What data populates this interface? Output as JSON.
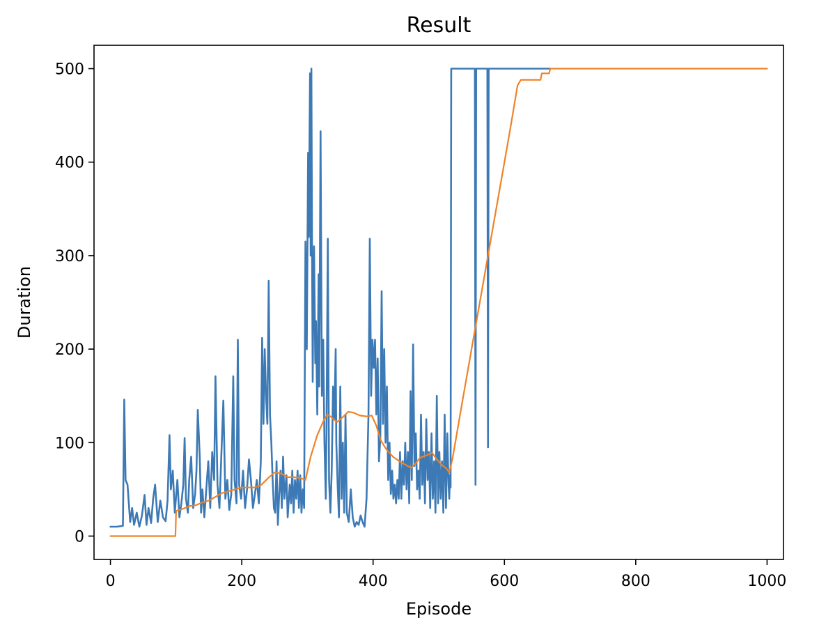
{
  "chart_data": {
    "type": "line",
    "title": "Result",
    "xlabel": "Episode",
    "ylabel": "Duration",
    "xlim": [
      -25,
      1025
    ],
    "ylim": [
      -25,
      525
    ],
    "xticks": [
      0,
      200,
      400,
      600,
      800,
      1000
    ],
    "yticks": [
      0,
      100,
      200,
      300,
      400,
      500
    ],
    "grid": false,
    "series": [
      {
        "color": "#3d7ab5",
        "values": [
          [
            0,
            10
          ],
          [
            10,
            10
          ],
          [
            19,
            11
          ],
          [
            21,
            146
          ],
          [
            23,
            60
          ],
          [
            26,
            55
          ],
          [
            30,
            15
          ],
          [
            33,
            30
          ],
          [
            36,
            12
          ],
          [
            40,
            25
          ],
          [
            44,
            10
          ],
          [
            48,
            22
          ],
          [
            52,
            44
          ],
          [
            55,
            12
          ],
          [
            58,
            30
          ],
          [
            62,
            14
          ],
          [
            65,
            40
          ],
          [
            68,
            55
          ],
          [
            72,
            15
          ],
          [
            76,
            38
          ],
          [
            80,
            20
          ],
          [
            84,
            16
          ],
          [
            87,
            38
          ],
          [
            90,
            108
          ],
          [
            92,
            50
          ],
          [
            95,
            70
          ],
          [
            98,
            25
          ],
          [
            102,
            60
          ],
          [
            105,
            20
          ],
          [
            108,
            35
          ],
          [
            111,
            55
          ],
          [
            113,
            105
          ],
          [
            115,
            40
          ],
          [
            118,
            25
          ],
          [
            120,
            60
          ],
          [
            123,
            85
          ],
          [
            126,
            30
          ],
          [
            129,
            45
          ],
          [
            131,
            70
          ],
          [
            133,
            135
          ],
          [
            136,
            85
          ],
          [
            138,
            25
          ],
          [
            140,
            50
          ],
          [
            143,
            20
          ],
          [
            146,
            50
          ],
          [
            149,
            80
          ],
          [
            152,
            30
          ],
          [
            155,
            90
          ],
          [
            158,
            60
          ],
          [
            160,
            171
          ],
          [
            163,
            55
          ],
          [
            166,
            30
          ],
          [
            169,
            88
          ],
          [
            172,
            145
          ],
          [
            175,
            40
          ],
          [
            178,
            60
          ],
          [
            181,
            28
          ],
          [
            184,
            45
          ],
          [
            187,
            171
          ],
          [
            189,
            60
          ],
          [
            192,
            35
          ],
          [
            194,
            210
          ],
          [
            196,
            55
          ],
          [
            199,
            40
          ],
          [
            202,
            70
          ],
          [
            205,
            30
          ],
          [
            208,
            50
          ],
          [
            211,
            82
          ],
          [
            214,
            60
          ],
          [
            217,
            30
          ],
          [
            220,
            45
          ],
          [
            223,
            60
          ],
          [
            226,
            35
          ],
          [
            229,
            80
          ],
          [
            231,
            212
          ],
          [
            233,
            120
          ],
          [
            235,
            200
          ],
          [
            237,
            150
          ],
          [
            239,
            120
          ],
          [
            241,
            273
          ],
          [
            243,
            130
          ],
          [
            245,
            100
          ],
          [
            247,
            60
          ],
          [
            249,
            30
          ],
          [
            251,
            25
          ],
          [
            253,
            80
          ],
          [
            255,
            12
          ],
          [
            257,
            45
          ],
          [
            259,
            70
          ],
          [
            261,
            30
          ],
          [
            263,
            85
          ],
          [
            265,
            40
          ],
          [
            268,
            65
          ],
          [
            270,
            20
          ],
          [
            273,
            55
          ],
          [
            275,
            35
          ],
          [
            277,
            70
          ],
          [
            279,
            25
          ],
          [
            281,
            60
          ],
          [
            283,
            40
          ],
          [
            285,
            70
          ],
          [
            287,
            30
          ],
          [
            289,
            65
          ],
          [
            291,
            25
          ],
          [
            293,
            50
          ],
          [
            295,
            30
          ],
          [
            297,
            315
          ],
          [
            299,
            200
          ],
          [
            300,
            300
          ],
          [
            301,
            410
          ],
          [
            302,
            320
          ],
          [
            304,
            495
          ],
          [
            305,
            300
          ],
          [
            306,
            500
          ],
          [
            307,
            320
          ],
          [
            308,
            165
          ],
          [
            309,
            250
          ],
          [
            310,
            310
          ],
          [
            312,
            185
          ],
          [
            313,
            230
          ],
          [
            315,
            130
          ],
          [
            317,
            280
          ],
          [
            318,
            160
          ],
          [
            320,
            433
          ],
          [
            322,
            150
          ],
          [
            324,
            210
          ],
          [
            326,
            100
          ],
          [
            328,
            40
          ],
          [
            329,
            110
          ],
          [
            331,
            318
          ],
          [
            333,
            60
          ],
          [
            335,
            25
          ],
          [
            337,
            70
          ],
          [
            339,
            160
          ],
          [
            341,
            125
          ],
          [
            343,
            200
          ],
          [
            344,
            100
          ],
          [
            346,
            55
          ],
          [
            348,
            20
          ],
          [
            350,
            160
          ],
          [
            352,
            40
          ],
          [
            354,
            100
          ],
          [
            356,
            25
          ],
          [
            358,
            130
          ],
          [
            360,
            25
          ],
          [
            363,
            15
          ],
          [
            366,
            50
          ],
          [
            369,
            20
          ],
          [
            372,
            10
          ],
          [
            375,
            15
          ],
          [
            378,
            12
          ],
          [
            381,
            22
          ],
          [
            384,
            15
          ],
          [
            387,
            10
          ],
          [
            390,
            40
          ],
          [
            393,
            130
          ],
          [
            395,
            318
          ],
          [
            397,
            150
          ],
          [
            399,
            210
          ],
          [
            401,
            180
          ],
          [
            403,
            210
          ],
          [
            405,
            130
          ],
          [
            407,
            190
          ],
          [
            409,
            80
          ],
          [
            411,
            105
          ],
          [
            413,
            262
          ],
          [
            415,
            120
          ],
          [
            417,
            200
          ],
          [
            419,
            100
          ],
          [
            421,
            160
          ],
          [
            423,
            60
          ],
          [
            425,
            100
          ],
          [
            427,
            45
          ],
          [
            429,
            70
          ],
          [
            431,
            40
          ],
          [
            433,
            55
          ],
          [
            435,
            35
          ],
          [
            437,
            60
          ],
          [
            439,
            40
          ],
          [
            441,
            90
          ],
          [
            443,
            40
          ],
          [
            445,
            80
          ],
          [
            447,
            55
          ],
          [
            449,
            100
          ],
          [
            451,
            50
          ],
          [
            453,
            90
          ],
          [
            455,
            35
          ],
          [
            457,
            155
          ],
          [
            459,
            60
          ],
          [
            461,
            205
          ],
          [
            463,
            75
          ],
          [
            465,
            110
          ],
          [
            467,
            50
          ],
          [
            469,
            70
          ],
          [
            471,
            40
          ],
          [
            473,
            130
          ],
          [
            475,
            55
          ],
          [
            477,
            90
          ],
          [
            479,
            35
          ],
          [
            481,
            125
          ],
          [
            483,
            60
          ],
          [
            485,
            90
          ],
          [
            487,
            30
          ],
          [
            489,
            110
          ],
          [
            491,
            40
          ],
          [
            493,
            80
          ],
          [
            495,
            25
          ],
          [
            497,
            150
          ],
          [
            499,
            35
          ],
          [
            501,
            90
          ],
          [
            503,
            40
          ],
          [
            505,
            80
          ],
          [
            507,
            25
          ],
          [
            509,
            130
          ],
          [
            511,
            30
          ],
          [
            513,
            110
          ],
          [
            515,
            55
          ],
          [
            516,
            40
          ],
          [
            517,
            65
          ],
          [
            518,
            52
          ],
          [
            519,
            500
          ],
          [
            555,
            500
          ],
          [
            556,
            55
          ],
          [
            557,
            500
          ],
          [
            574,
            500
          ],
          [
            575,
            95
          ],
          [
            576,
            500
          ],
          [
            670,
            500
          ]
        ]
      },
      {
        "color": "#f08227",
        "values": [
          [
            0,
            0
          ],
          [
            99,
            0
          ],
          [
            100,
            27
          ],
          [
            110,
            29
          ],
          [
            120,
            32
          ],
          [
            130,
            33
          ],
          [
            140,
            36
          ],
          [
            150,
            38
          ],
          [
            160,
            42
          ],
          [
            170,
            46
          ],
          [
            180,
            48
          ],
          [
            190,
            50
          ],
          [
            200,
            52
          ],
          [
            210,
            52
          ],
          [
            220,
            52
          ],
          [
            230,
            55
          ],
          [
            240,
            62
          ],
          [
            250,
            68
          ],
          [
            260,
            67
          ],
          [
            270,
            63
          ],
          [
            280,
            63
          ],
          [
            290,
            62
          ],
          [
            297,
            60
          ],
          [
            305,
            85
          ],
          [
            315,
            108
          ],
          [
            325,
            124
          ],
          [
            330,
            130
          ],
          [
            335,
            128
          ],
          [
            345,
            122
          ],
          [
            355,
            128
          ],
          [
            362,
            133
          ],
          [
            370,
            132
          ],
          [
            380,
            129
          ],
          [
            390,
            128
          ],
          [
            398,
            129
          ],
          [
            405,
            118
          ],
          [
            412,
            102
          ],
          [
            420,
            93
          ],
          [
            430,
            85
          ],
          [
            440,
            80
          ],
          [
            450,
            76
          ],
          [
            458,
            73
          ],
          [
            465,
            78
          ],
          [
            472,
            84
          ],
          [
            480,
            86
          ],
          [
            490,
            89
          ],
          [
            497,
            82
          ],
          [
            505,
            76
          ],
          [
            512,
            72
          ],
          [
            516,
            68
          ],
          [
            521,
            83
          ],
          [
            535,
            140
          ],
          [
            550,
            200
          ],
          [
            565,
            260
          ],
          [
            580,
            320
          ],
          [
            595,
            380
          ],
          [
            610,
            440
          ],
          [
            620,
            482
          ],
          [
            625,
            488
          ],
          [
            655,
            488
          ],
          [
            657,
            495
          ],
          [
            668,
            495
          ],
          [
            670,
            500
          ],
          [
            1000,
            500
          ]
        ]
      }
    ]
  }
}
